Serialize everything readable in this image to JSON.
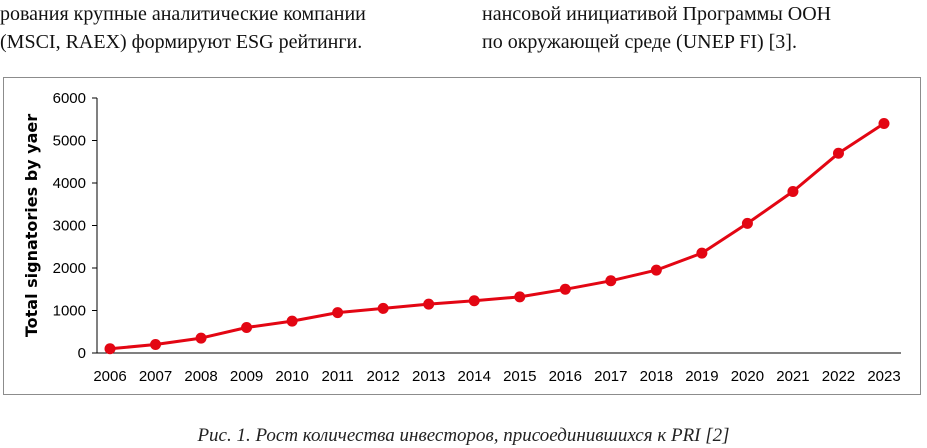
{
  "text": {
    "left_column": [
      "рования крупные аналитические компании",
      "(MSCI, RAEX) формируют ESG рейтинги."
    ],
    "right_column": [
      "нансовой инициативой Программы ООН",
      "по окружающей среде (UNEP FI) [3]."
    ]
  },
  "caption": "Рис. 1. Рост количества инвесторов, присоединившихся к PRI [2]",
  "colors": {
    "series": "#e30613",
    "axis": "#000000",
    "frame": "#8c8c8c"
  },
  "chart_data": {
    "type": "line",
    "title": "",
    "xlabel": "",
    "ylabel": "Total signatories by yaer",
    "ylim": [
      0,
      6000
    ],
    "yticks": [
      0,
      1000,
      2000,
      3000,
      4000,
      5000,
      6000
    ],
    "grid": false,
    "legend": "none",
    "x": [
      "2006",
      "2007",
      "2008",
      "2009",
      "2010",
      "2011",
      "2012",
      "2013",
      "2014",
      "2015",
      "2016",
      "2017",
      "2018",
      "2019",
      "2020",
      "2021",
      "2022",
      "2023"
    ],
    "series": [
      {
        "values": [
          100,
          200,
          350,
          600,
          750,
          950,
          1050,
          1150,
          1230,
          1320,
          1500,
          1700,
          1950,
          2350,
          3050,
          3800,
          4700,
          5400
        ]
      }
    ]
  }
}
